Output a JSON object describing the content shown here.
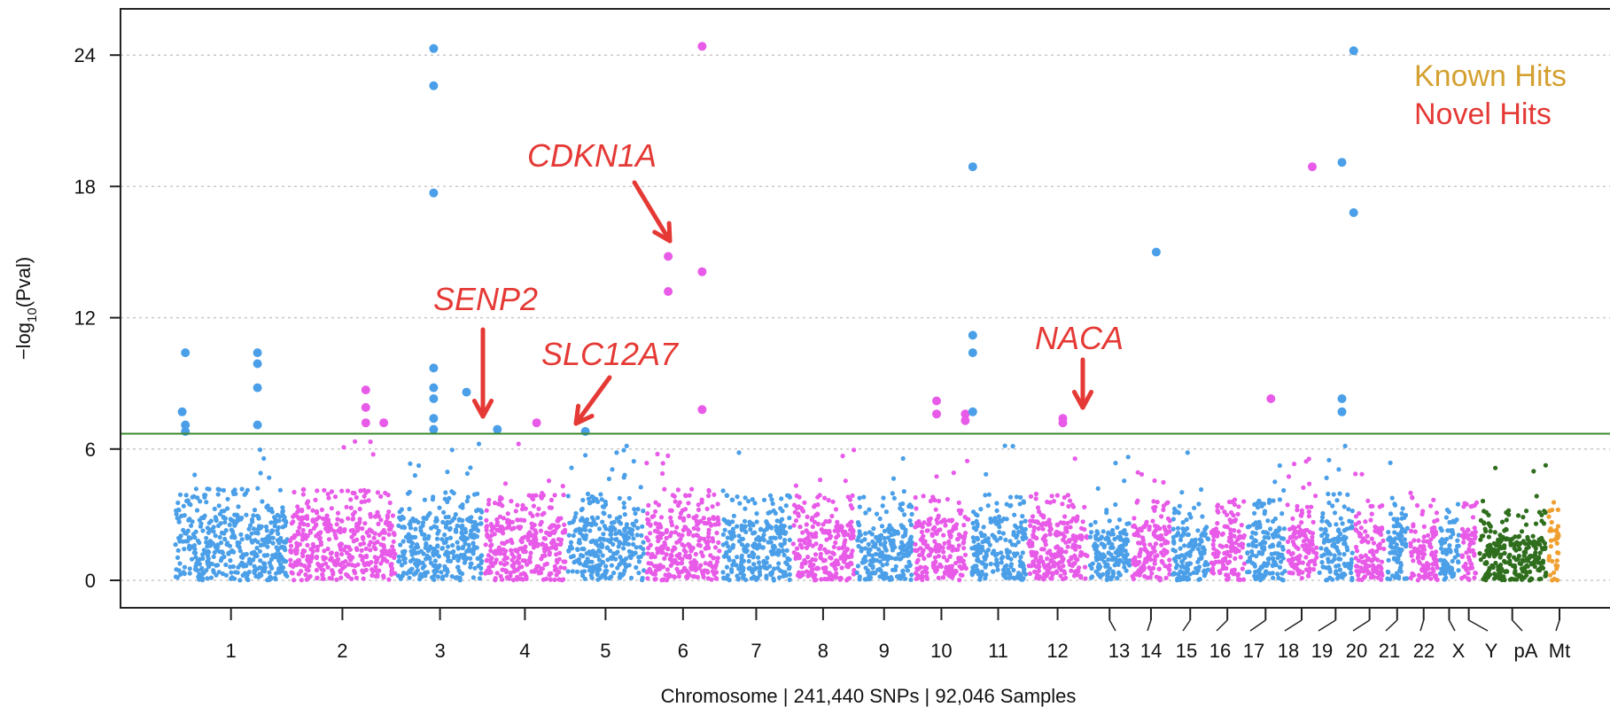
{
  "colors": {
    "blue": "#4a9fe8",
    "magenta": "#e85ae8",
    "green": "#2e6e1c",
    "orange": "#f0a030",
    "red": "#e53935",
    "threshold": "#3a8a2e",
    "known_hits": "#d4a030",
    "novel_hits": "#e53935",
    "arrow": "#e53935",
    "grid": "#c8c8c8"
  },
  "chart_data": {
    "type": "scatter",
    "title": "",
    "xlabel": "Chromosome | 241,440 SNPs | 92,046 Samples",
    "ylabel_prefix": "−log",
    "ylabel_sub": "10",
    "ylabel_suffix": "(Pval)",
    "ylim": [
      -1.2,
      26
    ],
    "yticks": [
      0,
      6,
      12,
      18,
      24
    ],
    "grid": "horizontal dotted",
    "threshold": 6.7,
    "chromosomes": [
      {
        "label": "1",
        "start": 0.0,
        "end": 10.8,
        "color": "blue",
        "base": 3.0
      },
      {
        "label": "2",
        "start": 10.8,
        "end": 21.0,
        "color": "magenta",
        "base": 3.0
      },
      {
        "label": "3",
        "start": 21.0,
        "end": 29.2,
        "color": "blue",
        "base": 2.9
      },
      {
        "label": "4",
        "start": 29.2,
        "end": 37.0,
        "color": "magenta",
        "base": 2.8
      },
      {
        "label": "5",
        "start": 37.0,
        "end": 44.4,
        "color": "blue",
        "base": 2.8
      },
      {
        "label": "6",
        "start": 44.4,
        "end": 51.6,
        "color": "magenta",
        "base": 3.0
      },
      {
        "label": "7",
        "start": 51.6,
        "end": 58.2,
        "color": "blue",
        "base": 2.7
      },
      {
        "label": "8",
        "start": 58.2,
        "end": 64.2,
        "color": "magenta",
        "base": 2.7
      },
      {
        "label": "9",
        "start": 64.2,
        "end": 69.7,
        "color": "blue",
        "base": 2.6
      },
      {
        "label": "10",
        "start": 69.7,
        "end": 75.0,
        "color": "magenta",
        "base": 2.8
      },
      {
        "label": "11",
        "start": 75.0,
        "end": 80.4,
        "color": "blue",
        "base": 2.8
      },
      {
        "label": "12",
        "start": 80.4,
        "end": 86.2,
        "color": "magenta",
        "base": 2.8
      },
      {
        "label": "13",
        "start": 86.2,
        "end": 90.2,
        "color": "blue",
        "base": 2.3
      },
      {
        "label": "14",
        "start": 90.2,
        "end": 94.0,
        "color": "magenta",
        "base": 2.5
      },
      {
        "label": "15",
        "start": 94.0,
        "end": 97.6,
        "color": "blue",
        "base": 2.4
      },
      {
        "label": "16",
        "start": 97.6,
        "end": 101.0,
        "color": "magenta",
        "base": 2.5
      },
      {
        "label": "17",
        "start": 101.0,
        "end": 104.8,
        "color": "blue",
        "base": 2.6
      },
      {
        "label": "18",
        "start": 104.8,
        "end": 107.8,
        "color": "magenta",
        "base": 2.4
      },
      {
        "label": "19",
        "start": 107.8,
        "end": 111.2,
        "color": "blue",
        "base": 2.8
      },
      {
        "label": "20",
        "start": 111.2,
        "end": 114.2,
        "color": "magenta",
        "base": 2.5
      },
      {
        "label": "21",
        "start": 114.2,
        "end": 116.4,
        "color": "blue",
        "base": 2.6
      },
      {
        "label": "22",
        "start": 116.4,
        "end": 119.2,
        "color": "magenta",
        "base": 2.6
      },
      {
        "label": "X",
        "start": 119.2,
        "end": 121.2,
        "color": "blue",
        "base": 2.3
      },
      {
        "label": "Y",
        "start": 121.2,
        "end": 122.9,
        "color": "magenta",
        "base": 2.4
      },
      {
        "label": "pA",
        "start": 122.9,
        "end": 129.4,
        "color": "green",
        "base": 2.0
      },
      {
        "label": "Mt",
        "start": 129.4,
        "end": 130.6,
        "color": "orange",
        "base": 2.5
      }
    ],
    "hits": [
      {
        "x": 0.8,
        "y": 7.7,
        "color": "blue"
      },
      {
        "x": 1.1,
        "y": 10.4,
        "color": "blue"
      },
      {
        "x": 1.1,
        "y": 7.1,
        "color": "blue"
      },
      {
        "x": 1.1,
        "y": 6.8,
        "color": "blue"
      },
      {
        "x": 7.9,
        "y": 10.4,
        "color": "blue"
      },
      {
        "x": 7.9,
        "y": 9.9,
        "color": "blue"
      },
      {
        "x": 7.9,
        "y": 8.8,
        "color": "blue"
      },
      {
        "x": 7.9,
        "y": 7.1,
        "color": "blue"
      },
      {
        "x": 18.1,
        "y": 8.7,
        "color": "magenta"
      },
      {
        "x": 18.1,
        "y": 7.9,
        "color": "magenta"
      },
      {
        "x": 18.1,
        "y": 7.2,
        "color": "magenta"
      },
      {
        "x": 19.8,
        "y": 7.2,
        "color": "magenta"
      },
      {
        "x": 24.5,
        "y": 24.3,
        "color": "blue"
      },
      {
        "x": 24.5,
        "y": 22.6,
        "color": "blue"
      },
      {
        "x": 24.5,
        "y": 17.7,
        "color": "blue"
      },
      {
        "x": 24.5,
        "y": 9.7,
        "color": "blue"
      },
      {
        "x": 24.5,
        "y": 8.8,
        "color": "blue"
      },
      {
        "x": 24.5,
        "y": 8.3,
        "color": "blue"
      },
      {
        "x": 24.5,
        "y": 7.4,
        "color": "blue"
      },
      {
        "x": 24.5,
        "y": 6.9,
        "color": "blue"
      },
      {
        "x": 27.6,
        "y": 8.6,
        "color": "blue"
      },
      {
        "x": 30.5,
        "y": 6.9,
        "color": "blue"
      },
      {
        "x": 34.2,
        "y": 7.2,
        "color": "magenta"
      },
      {
        "x": 38.8,
        "y": 6.8,
        "color": "blue"
      },
      {
        "x": 46.6,
        "y": 14.8,
        "color": "magenta"
      },
      {
        "x": 46.6,
        "y": 13.2,
        "color": "magenta"
      },
      {
        "x": 49.8,
        "y": 24.4,
        "color": "magenta"
      },
      {
        "x": 49.8,
        "y": 14.1,
        "color": "magenta"
      },
      {
        "x": 49.8,
        "y": 7.8,
        "color": "magenta"
      },
      {
        "x": 71.9,
        "y": 8.2,
        "color": "magenta"
      },
      {
        "x": 71.9,
        "y": 7.6,
        "color": "magenta"
      },
      {
        "x": 74.6,
        "y": 7.6,
        "color": "magenta"
      },
      {
        "x": 74.6,
        "y": 7.3,
        "color": "magenta"
      },
      {
        "x": 75.3,
        "y": 18.9,
        "color": "blue"
      },
      {
        "x": 75.3,
        "y": 11.2,
        "color": "blue"
      },
      {
        "x": 75.3,
        "y": 10.4,
        "color": "blue"
      },
      {
        "x": 75.3,
        "y": 7.7,
        "color": "blue"
      },
      {
        "x": 83.8,
        "y": 7.4,
        "color": "magenta"
      },
      {
        "x": 83.8,
        "y": 7.2,
        "color": "magenta"
      },
      {
        "x": 92.6,
        "y": 15.0,
        "color": "blue"
      },
      {
        "x": 103.4,
        "y": 8.3,
        "color": "magenta"
      },
      {
        "x": 107.3,
        "y": 18.9,
        "color": "magenta"
      },
      {
        "x": 110.1,
        "y": 19.1,
        "color": "blue"
      },
      {
        "x": 110.1,
        "y": 8.3,
        "color": "blue"
      },
      {
        "x": 110.1,
        "y": 7.7,
        "color": "blue"
      },
      {
        "x": 111.2,
        "y": 24.2,
        "color": "blue"
      },
      {
        "x": 111.2,
        "y": 16.8,
        "color": "blue"
      }
    ],
    "annotations": [
      {
        "label": "CDKN1A",
        "tip": [
          46.6,
          14.8
        ]
      },
      {
        "label": "SENP2",
        "tip": [
          30.5,
          6.9
        ]
      },
      {
        "label": "SLC12A7",
        "tip": [
          38.8,
          6.8
        ]
      },
      {
        "label": "NACA",
        "tip": [
          83.8,
          7.3
        ]
      }
    ],
    "legend": {
      "position": "top-right",
      "entries": [
        {
          "label": "Known Hits",
          "color": "known_hits"
        },
        {
          "label": "Novel Hits",
          "color": "novel_hits"
        }
      ]
    }
  }
}
